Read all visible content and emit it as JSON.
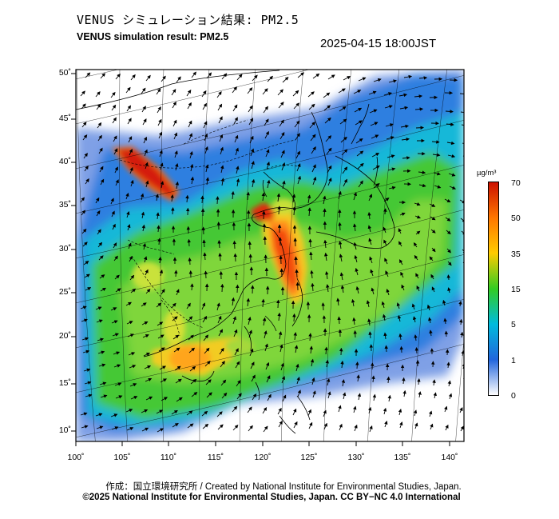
{
  "header": {
    "title_jp": "VENUS シミュレーション結果: PM2.5",
    "title_en": "VENUS simulation result: PM2.5",
    "timestamp": "2025-04-15 18:00JST"
  },
  "axes": {
    "lat_labels": [
      "50˚",
      "45˚",
      "40˚",
      "35˚",
      "30˚",
      "25˚",
      "20˚",
      "15˚",
      "10˚"
    ],
    "lon_labels": [
      "100˚",
      "105˚",
      "110˚",
      "115˚",
      "120˚",
      "125˚",
      "130˚",
      "135˚",
      "140˚"
    ]
  },
  "colorbar": {
    "unit": "µg/m³",
    "ticks": [
      "70",
      "50",
      "35",
      "15",
      "5",
      "1",
      "0"
    ],
    "colors": [
      "#cc1100",
      "#ff7700",
      "#ffcc00",
      "#33cc22",
      "#00bbdd",
      "#2266dd",
      "#ffffff"
    ]
  },
  "map_layers": {
    "field": "PM2.5 concentration",
    "vectors": "wind arrows",
    "basemap": "coastlines and borders"
  },
  "footer": {
    "credit": "作成：国立環境研究所 / Created by National Institute for Environmental Studies, Japan.",
    "license": "©2025 National Institute for Environmental Studies, Japan. CC BY−NC 4.0 International"
  }
}
